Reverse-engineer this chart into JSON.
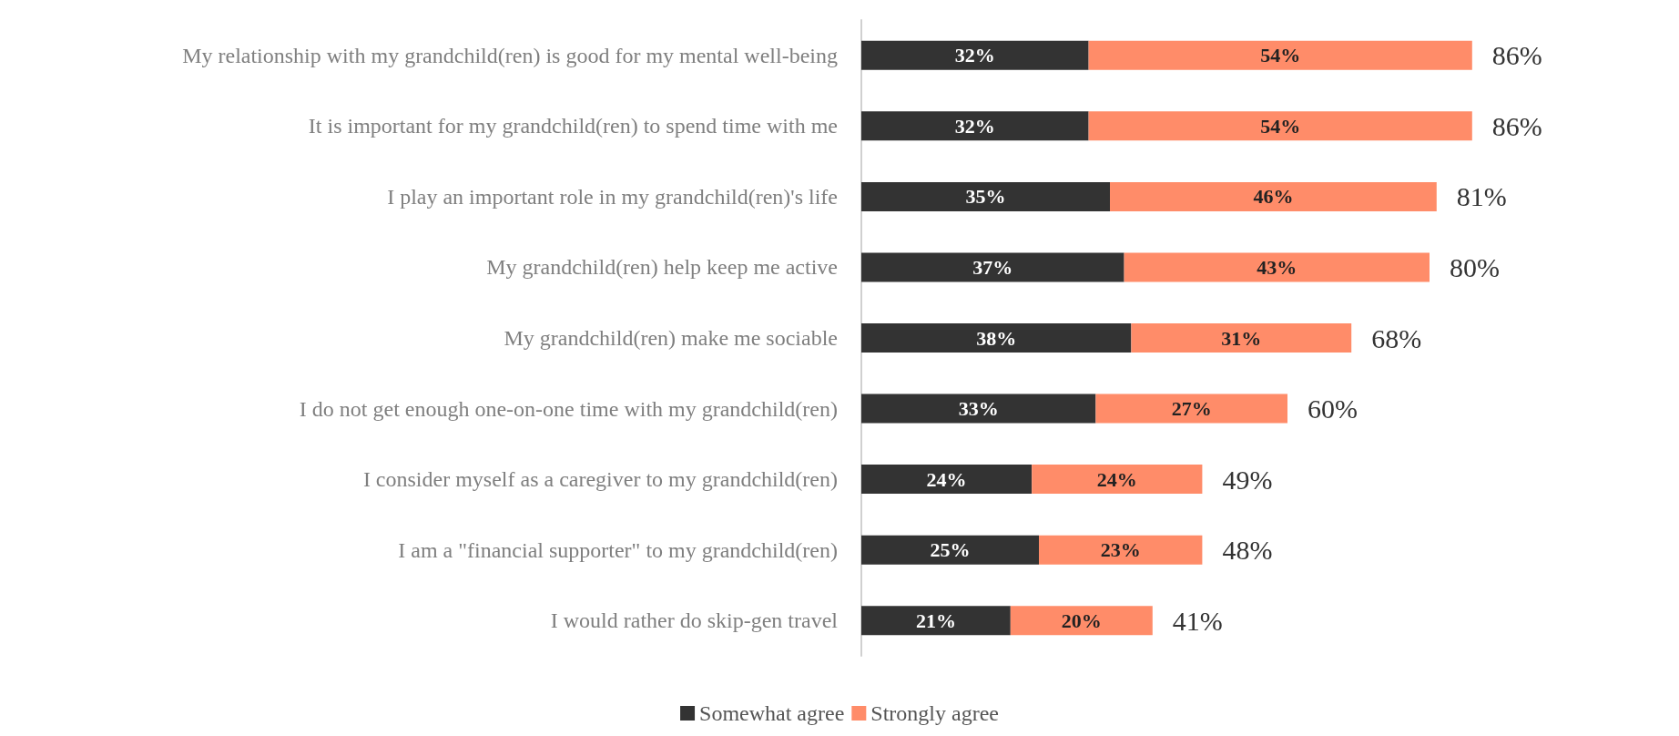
{
  "chart_data": {
    "type": "bar",
    "orientation": "horizontal",
    "stacked": true,
    "categories": [
      "My relationship with my grandchild(ren) is good for my mental well-being",
      "It is important for my grandchild(ren) to spend time with me",
      "I play an important role in my grandchild(ren)'s life",
      "My grandchild(ren) help keep me active",
      "My grandchild(ren) make me sociable",
      "I do not get enough one-on-one time with my grandchild(ren)",
      "I consider myself as a caregiver to my grandchild(ren)",
      "I am a \"financial supporter\" to my grandchild(ren)",
      "I would rather do skip-gen travel"
    ],
    "series": [
      {
        "name": "Somewhat agree",
        "color": "#333333",
        "values": [
          32,
          32,
          35,
          37,
          38,
          33,
          24,
          25,
          21
        ],
        "value_labels": [
          "32%",
          "32%",
          "35%",
          "37%",
          "38%",
          "33%",
          "24%",
          "25%",
          "21%"
        ]
      },
      {
        "name": "Strongly agree",
        "color": "#ff8c69",
        "values": [
          54,
          54,
          46,
          43,
          31,
          27,
          24,
          23,
          20
        ],
        "value_labels": [
          "54%",
          "54%",
          "46%",
          "43%",
          "31%",
          "27%",
          "24%",
          "23%",
          "20%"
        ]
      }
    ],
    "totals": [
      "86%",
      "86%",
      "81%",
      "80%",
      "68%",
      "60%",
      "49%",
      "48%",
      "41%"
    ],
    "legend": "bottom",
    "tick_labels": "y"
  }
}
